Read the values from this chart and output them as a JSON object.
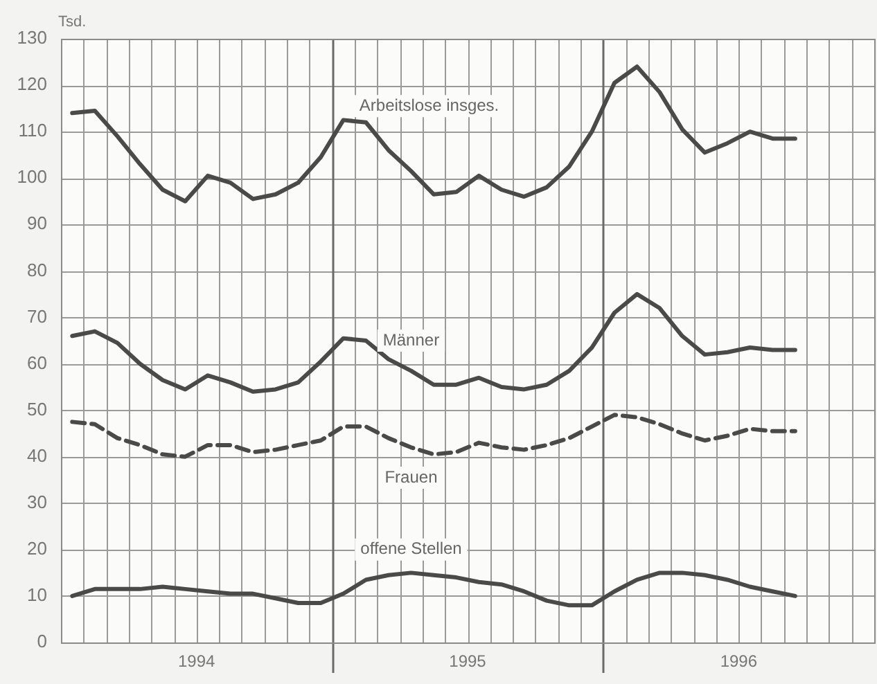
{
  "chart_data": {
    "type": "line",
    "ylabel": "Tsd.",
    "x": [
      "1994-01-16",
      "1994-02-16",
      "1994-03-16",
      "1994-04-16",
      "1994-05-16",
      "1994-06-16",
      "1994-07-16",
      "1994-08-16",
      "1994-09-16",
      "1994-10-16",
      "1994-11-16",
      "1994-12-16",
      "1995-01-16",
      "1995-02-16",
      "1995-03-16",
      "1995-04-16",
      "1995-05-16",
      "1995-06-16",
      "1995-07-16",
      "1995-08-16",
      "1995-09-16",
      "1995-10-16",
      "1995-11-16",
      "1995-12-16",
      "1996-01-16",
      "1996-02-16",
      "1996-03-16",
      "1996-04-16",
      "1996-05-16",
      "1996-06-16",
      "1996-07-16",
      "1996-08-16",
      "1996-09-16"
    ],
    "series": [
      {
        "name": "Arbeitslose insges.",
        "color": "#4a4a48",
        "line_style": "solid",
        "values": [
          114,
          114.5,
          109,
          103,
          97.5,
          95,
          100.5,
          99,
          95.5,
          96.5,
          99,
          104.5,
          112.5,
          112,
          106,
          101.5,
          96.5,
          97,
          100.5,
          97.5,
          96,
          98,
          102.5,
          110,
          120.5,
          124,
          118.5,
          110.5,
          105.5,
          107.5,
          110,
          108.5,
          108.5
        ]
      },
      {
        "name": "Männer",
        "color": "#4a4a48",
        "line_style": "solid",
        "values": [
          66,
          67,
          64.5,
          60,
          56.5,
          54.5,
          57.5,
          56,
          54,
          54.5,
          56,
          60.5,
          65.5,
          65,
          61,
          58.5,
          55.5,
          55.5,
          57,
          55,
          54.5,
          55.5,
          58.5,
          63.5,
          71,
          75,
          72,
          66,
          62,
          62.5,
          63.5,
          63,
          63
        ]
      },
      {
        "name": "Frauen",
        "color": "#4a4a48",
        "line_style": "dashed",
        "values": [
          47.5,
          47,
          44,
          42.5,
          40.5,
          40,
          42.5,
          42.5,
          41,
          41.5,
          42.5,
          43.5,
          46.5,
          46.5,
          44,
          42,
          40.5,
          41,
          43,
          42,
          41.5,
          42.5,
          44,
          46.5,
          49,
          48.5,
          47,
          45,
          43.5,
          44.5,
          46,
          45.5,
          45.5
        ]
      },
      {
        "name": "offene Stellen",
        "color": "#4a4a48",
        "line_style": "solid",
        "values": [
          10,
          11.5,
          11.5,
          11.5,
          12,
          11.5,
          11,
          10.5,
          10.5,
          9.5,
          8.5,
          8.5,
          10.5,
          13.5,
          14.5,
          15,
          14.5,
          14,
          13,
          12.5,
          11,
          9,
          8,
          8,
          11,
          13.5,
          15,
          15,
          14.5,
          13.5,
          12,
          11,
          10
        ]
      }
    ],
    "xlim": [
      "1994-01-01",
      "1997-01-01"
    ],
    "xticks": [
      {
        "value": "1994-07-01",
        "label": "1994"
      },
      {
        "value": "1995-01-01",
        "label": null
      },
      {
        "value": "1995-07-01",
        "label": "1995"
      },
      {
        "value": "1996-01-01",
        "label": null
      },
      {
        "value": "1996-07-01",
        "label": "1996"
      }
    ],
    "ylim": [
      0,
      130
    ],
    "yticks": [
      0,
      10,
      20,
      30,
      40,
      50,
      60,
      70,
      80,
      90,
      100,
      110,
      120,
      130
    ],
    "grid": true,
    "legend": false,
    "marker": "none"
  }
}
